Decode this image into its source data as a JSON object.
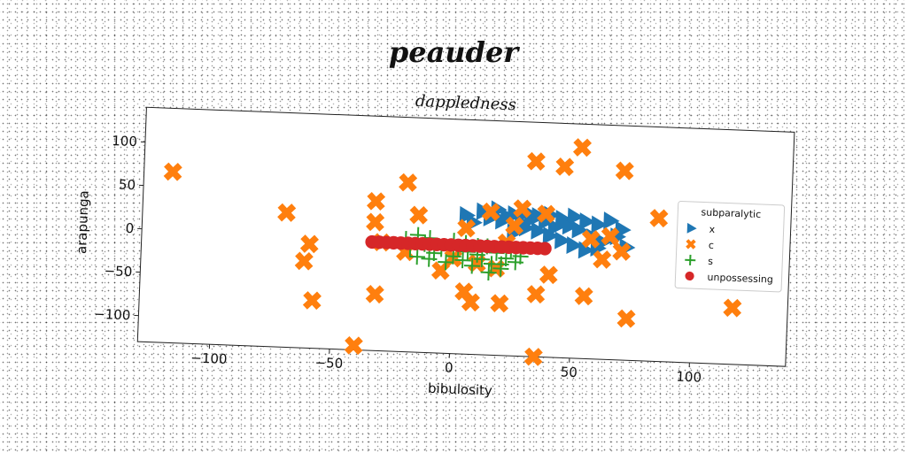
{
  "page": {
    "title": "peauder"
  },
  "chart_data": {
    "type": "scatter",
    "title": "dappledness",
    "xlabel": "bibulosity",
    "ylabel": "arapunga",
    "xlim": [
      -130,
      140
    ],
    "ylim": [
      -130,
      140
    ],
    "xticks": [
      -100,
      -50,
      0,
      50,
      100
    ],
    "yticks": [
      -100,
      -50,
      0,
      50,
      100
    ],
    "grid": false,
    "legend": {
      "title": "subparalytic",
      "placement": "right"
    },
    "series": [
      {
        "name": "x",
        "marker": "triangle-right",
        "color": "#1f77b4",
        "points": [
          [
            5,
            30
          ],
          [
            8,
            22
          ],
          [
            12,
            35
          ],
          [
            15,
            28
          ],
          [
            18,
            38
          ],
          [
            20,
            25
          ],
          [
            22,
            30
          ],
          [
            25,
            33
          ],
          [
            28,
            24
          ],
          [
            30,
            36
          ],
          [
            32,
            28
          ],
          [
            35,
            32
          ],
          [
            38,
            26
          ],
          [
            40,
            34
          ],
          [
            42,
            20
          ],
          [
            45,
            30
          ],
          [
            48,
            22
          ],
          [
            50,
            33
          ],
          [
            52,
            18
          ],
          [
            55,
            28
          ],
          [
            58,
            10
          ],
          [
            60,
            25
          ],
          [
            62,
            5
          ],
          [
            65,
            30
          ],
          [
            68,
            12
          ],
          [
            70,
            20
          ],
          [
            72,
            0
          ],
          [
            35,
            15
          ],
          [
            40,
            10
          ],
          [
            45,
            5
          ],
          [
            50,
            0
          ],
          [
            30,
            18
          ],
          [
            25,
            12
          ],
          [
            55,
            -5
          ],
          [
            60,
            -2
          ],
          [
            45,
            25
          ]
        ]
      },
      {
        "name": "c",
        "marker": "x-filled",
        "color": "#ff7f0e",
        "points": [
          [
            -118,
            67
          ],
          [
            -70,
            25
          ],
          [
            -60,
            -10
          ],
          [
            -62,
            -30
          ],
          [
            -58,
            -75
          ],
          [
            -40,
            -125
          ],
          [
            -32,
            -65
          ],
          [
            -33,
            42
          ],
          [
            -33,
            18
          ],
          [
            -20,
            65
          ],
          [
            -15,
            28
          ],
          [
            -20,
            -15
          ],
          [
            -5,
            -35
          ],
          [
            5,
            -58
          ],
          [
            8,
            -70
          ],
          [
            15,
            35
          ],
          [
            20,
            -70
          ],
          [
            25,
            20
          ],
          [
            28,
            40
          ],
          [
            33,
            95
          ],
          [
            35,
            -58
          ],
          [
            35,
            -130
          ],
          [
            38,
            35
          ],
          [
            40,
            -35
          ],
          [
            45,
            90
          ],
          [
            52,
            113
          ],
          [
            55,
            -58
          ],
          [
            57,
            8
          ],
          [
            62,
            -15
          ],
          [
            65,
            12
          ],
          [
            70,
            -5
          ],
          [
            70,
            88
          ],
          [
            73,
            -82
          ],
          [
            85,
            35
          ],
          [
            117,
            -65
          ],
          [
            130,
            25
          ],
          [
            -30,
            -5
          ],
          [
            0,
            -20
          ],
          [
            10,
            -25
          ],
          [
            18,
            -30
          ],
          [
            22,
            0
          ],
          [
            5,
            15
          ]
        ]
      },
      {
        "name": "s",
        "marker": "plus",
        "color": "#2ca02c",
        "points": [
          [
            -18,
            -10
          ],
          [
            -15,
            -20
          ],
          [
            -12,
            -5
          ],
          [
            -10,
            -22
          ],
          [
            -8,
            -15
          ],
          [
            -5,
            -10
          ],
          [
            -3,
            -25
          ],
          [
            0,
            -18
          ],
          [
            2,
            -8
          ],
          [
            4,
            -22
          ],
          [
            6,
            -12
          ],
          [
            8,
            -28
          ],
          [
            10,
            -15
          ],
          [
            12,
            -20
          ],
          [
            14,
            -5
          ],
          [
            16,
            -25
          ],
          [
            18,
            -12
          ],
          [
            20,
            -30
          ],
          [
            22,
            -18
          ],
          [
            24,
            -8
          ],
          [
            26,
            -22
          ],
          [
            28,
            -15
          ],
          [
            -20,
            0
          ],
          [
            -15,
            5
          ],
          [
            -10,
            2
          ],
          [
            0,
            0
          ],
          [
            5,
            -2
          ],
          [
            10,
            -5
          ],
          [
            15,
            -35
          ],
          [
            20,
            -25
          ]
        ]
      },
      {
        "name": "unpossessing",
        "marker": "circle",
        "color": "#d62728",
        "points": [
          [
            -34,
            -5
          ],
          [
            -31,
            -5
          ],
          [
            -28,
            -5
          ],
          [
            -25,
            -5
          ],
          [
            -22,
            -5
          ],
          [
            -19,
            -5
          ],
          [
            -16,
            -5
          ],
          [
            -13,
            -5
          ],
          [
            -10,
            -5
          ],
          [
            -7,
            -5
          ],
          [
            -4,
            -5
          ],
          [
            -1,
            -5
          ],
          [
            2,
            -5
          ],
          [
            5,
            -5
          ],
          [
            8,
            -5
          ],
          [
            11,
            -5
          ],
          [
            14,
            -5
          ],
          [
            17,
            -5
          ],
          [
            20,
            -5
          ],
          [
            23,
            -5
          ],
          [
            26,
            -5
          ],
          [
            29,
            -5
          ],
          [
            32,
            -5
          ],
          [
            35,
            -5
          ],
          [
            38,
            -5
          ]
        ]
      }
    ]
  }
}
